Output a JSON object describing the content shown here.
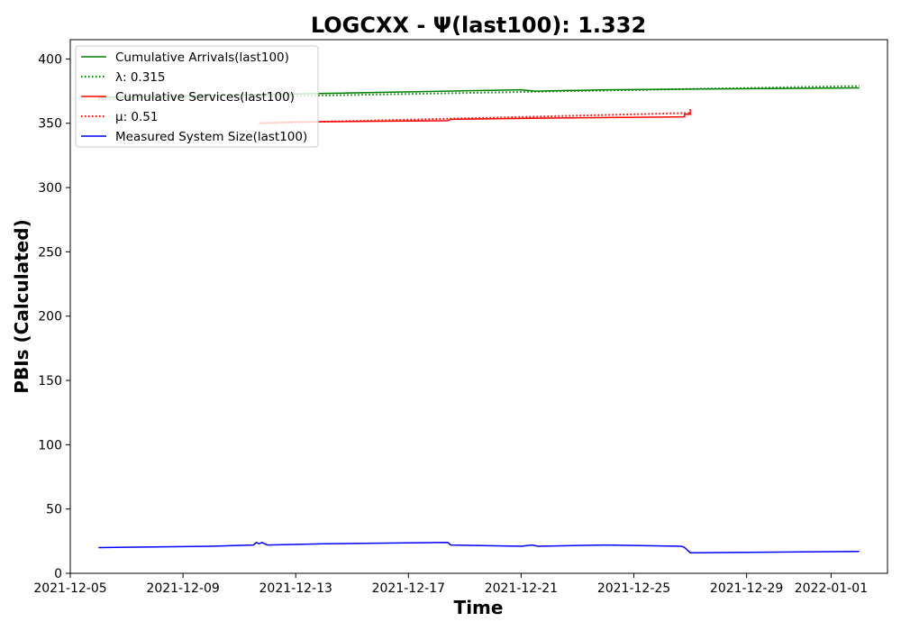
{
  "chart_data": {
    "type": "line",
    "title": "LOGCXX -  Ψ(last100): 1.332",
    "xlabel": "Time",
    "ylabel": "PBIs (Calculated)",
    "xlim": [
      "2021-12-05",
      "2022-01-03"
    ],
    "ylim": [
      0,
      415
    ],
    "x_ticks": [
      "2021-12-05",
      "2021-12-09",
      "2021-12-13",
      "2021-12-17",
      "2021-12-21",
      "2021-12-25",
      "2021-12-29",
      "2022-01-01"
    ],
    "y_ticks": [
      0,
      50,
      100,
      150,
      200,
      250,
      300,
      350,
      400
    ],
    "grid": false,
    "legend_position": "top-left",
    "series": [
      {
        "name": "Cumulative Arrivals(last100)",
        "color": "#008000",
        "style": "solid",
        "points": [
          [
            "2021-12-06",
            370
          ],
          [
            "2021-12-21",
            376
          ],
          [
            "2021-12-21.5",
            375
          ],
          [
            "2021-12-24",
            376
          ],
          [
            "2022-01-02",
            377.5
          ]
        ]
      },
      {
        "name": "λ: 0.315",
        "color": "#008000",
        "style": "dotted",
        "points": [
          [
            "2021-12-06",
            368.5
          ],
          [
            "2022-01-02",
            379
          ]
        ]
      },
      {
        "name": "Cumulative Services(last100)",
        "color": "#ff0000",
        "style": "solid",
        "points": [
          [
            "2021-12-11.7",
            350
          ],
          [
            "2021-12-13",
            351
          ],
          [
            "2021-12-18.4",
            352
          ],
          [
            "2021-12-18.5",
            353
          ],
          [
            "2021-12-22",
            354
          ],
          [
            "2021-12-26.8",
            355
          ],
          [
            "2021-12-26.8",
            357
          ],
          [
            "2021-12-27",
            357
          ],
          [
            "2021-12-27",
            361
          ]
        ]
      },
      {
        "name": "μ: 0.51",
        "color": "#ff0000",
        "style": "dotted",
        "points": [
          [
            "2021-12-11.7",
            350
          ],
          [
            "2021-12-27",
            358
          ]
        ]
      },
      {
        "name": "Measured System Size(last100)",
        "color": "#0000ff",
        "style": "solid",
        "points": [
          [
            "2021-12-06",
            20
          ],
          [
            "2021-12-10",
            21
          ],
          [
            "2021-12-11.5",
            22
          ],
          [
            "2021-12-11.6",
            24
          ],
          [
            "2021-12-11.7",
            23
          ],
          [
            "2021-12-11.8",
            24
          ],
          [
            "2021-12-12",
            22
          ],
          [
            "2021-12-14",
            23
          ],
          [
            "2021-12-18.4",
            24
          ],
          [
            "2021-12-18.5",
            22
          ],
          [
            "2021-12-21",
            21
          ],
          [
            "2021-12-21.4",
            22
          ],
          [
            "2021-12-21.6",
            21
          ],
          [
            "2021-12-24",
            22
          ],
          [
            "2021-12-26.7",
            21
          ],
          [
            "2021-12-26.8",
            20
          ],
          [
            "2021-12-27",
            16
          ],
          [
            "2022-01-02",
            17
          ]
        ]
      }
    ],
    "legend": [
      {
        "label": "Cumulative Arrivals(last100)",
        "color": "#008000",
        "style": "solid"
      },
      {
        "label": "λ: 0.315",
        "color": "#008000",
        "style": "dotted"
      },
      {
        "label": "Cumulative Services(last100)",
        "color": "#ff0000",
        "style": "solid"
      },
      {
        "label": "μ: 0.51",
        "color": "#ff0000",
        "style": "dotted"
      },
      {
        "label": "Measured System Size(last100)",
        "color": "#0000ff",
        "style": "solid"
      }
    ]
  }
}
